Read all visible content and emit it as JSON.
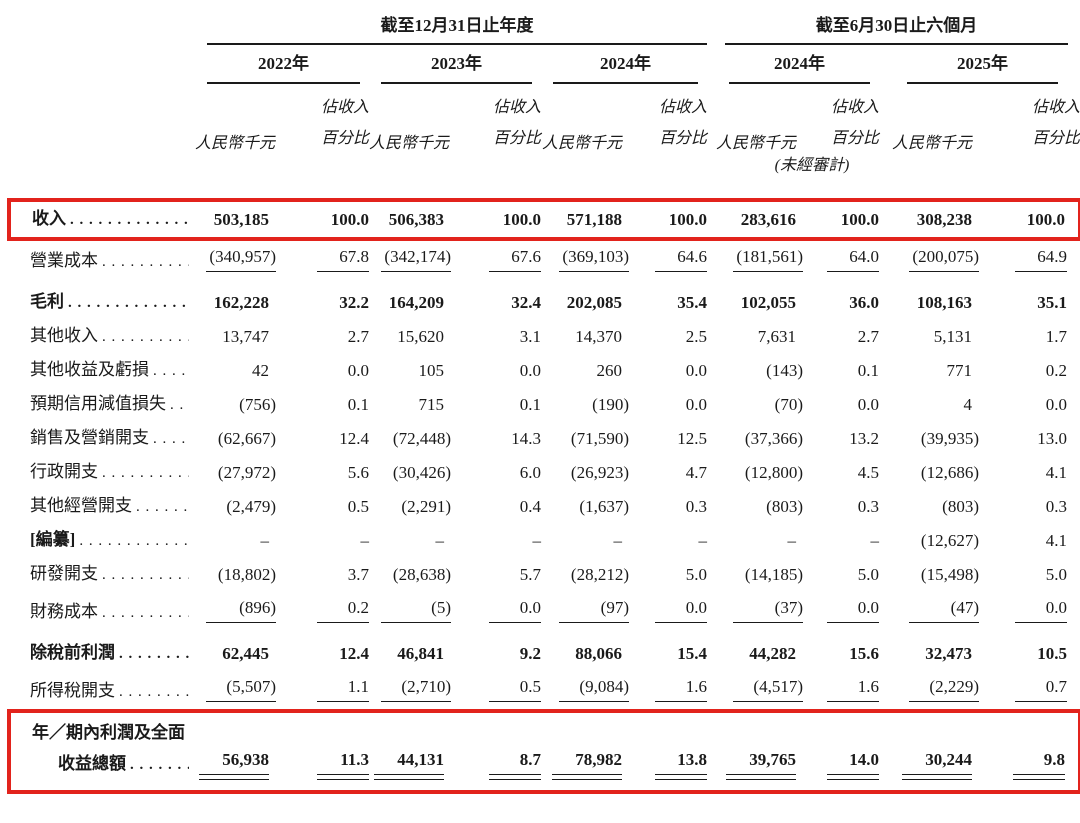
{
  "colors": {
    "highlight_box_red": "#e2231c",
    "rule": "#1a1a1a",
    "text": "#1a1a1a",
    "background": "#ffffff"
  },
  "table": {
    "group1": {
      "title": "截至12月31日止年度",
      "years": [
        "2022年",
        "2023年",
        "2024年"
      ]
    },
    "group2": {
      "title": "截至6月30日止六個月",
      "years": [
        "2024年",
        "2025年"
      ]
    },
    "col_unit": "人民幣千元",
    "col_pct_line1": "佔收入",
    "col_pct_line2": "百分比",
    "unaudited": "(未經審計)",
    "rows": [
      {
        "name": "row-revenue",
        "label": "收入",
        "bold": true,
        "box": true,
        "cells": [
          "503,185",
          "100.0",
          "506,383",
          "100.0",
          "571,188",
          "100.0",
          "283,616",
          "100.0",
          "308,238",
          "100.0"
        ]
      },
      {
        "name": "row-cost-of-sales",
        "label": "營業成本",
        "underline": true,
        "cells": [
          "(340,957)",
          "67.8",
          "(342,174)",
          "67.6",
          "(369,103)",
          "64.6",
          "(181,561)",
          "64.0",
          "(200,075)",
          "64.9"
        ]
      },
      {
        "name": "row-gross-profit",
        "label": "毛利",
        "bold": true,
        "gap_top": true,
        "cells": [
          "162,228",
          "32.2",
          "164,209",
          "32.4",
          "202,085",
          "35.4",
          "102,055",
          "36.0",
          "108,163",
          "35.1"
        ]
      },
      {
        "name": "row-other-income",
        "label": "其他收入",
        "cells": [
          "13,747",
          "2.7",
          "15,620",
          "3.1",
          "14,370",
          "2.5",
          "7,631",
          "2.7",
          "5,131",
          "1.7"
        ]
      },
      {
        "name": "row-other-gains-losses",
        "label": "其他收益及虧損",
        "cells": [
          "42",
          "0.0",
          "105",
          "0.0",
          "260",
          "0.0",
          "(143)",
          "0.1",
          "771",
          "0.2"
        ]
      },
      {
        "name": "row-expected-credit-loss",
        "label": "預期信用減值損失",
        "cells": [
          "(756)",
          "0.1",
          "715",
          "0.1",
          "(190)",
          "0.0",
          "(70)",
          "0.0",
          "4",
          "0.0"
        ]
      },
      {
        "name": "row-selling-marketing",
        "label": "銷售及營銷開支",
        "cells": [
          "(62,667)",
          "12.4",
          "(72,448)",
          "14.3",
          "(71,590)",
          "12.5",
          "(37,366)",
          "13.2",
          "(39,935)",
          "13.0"
        ]
      },
      {
        "name": "row-admin-expenses",
        "label": "行政開支",
        "cells": [
          "(27,972)",
          "5.6",
          "(30,426)",
          "6.0",
          "(26,923)",
          "4.7",
          "(12,800)",
          "4.5",
          "(12,686)",
          "4.1"
        ]
      },
      {
        "name": "row-other-operating",
        "label": "其他經營開支",
        "cells": [
          "(2,479)",
          "0.5",
          "(2,291)",
          "0.4",
          "(1,637)",
          "0.3",
          "(803)",
          "0.3",
          "(803)",
          "0.3"
        ]
      },
      {
        "name": "row-redacted",
        "label": "[編纂]",
        "label_bold": true,
        "cells": [
          "–",
          "–",
          "–",
          "–",
          "–",
          "–",
          "–",
          "–",
          "(12,627)",
          "4.1"
        ]
      },
      {
        "name": "row-rd-expenses",
        "label": "研發開支",
        "cells": [
          "(18,802)",
          "3.7",
          "(28,638)",
          "5.7",
          "(28,212)",
          "5.0",
          "(14,185)",
          "5.0",
          "(15,498)",
          "5.0"
        ]
      },
      {
        "name": "row-finance-costs",
        "label": "財務成本",
        "underline": true,
        "cells": [
          "(896)",
          "0.2",
          "(5)",
          "0.0",
          "(97)",
          "0.0",
          "(37)",
          "0.0",
          "(47)",
          "0.0"
        ]
      },
      {
        "name": "row-profit-before-tax",
        "label": "除稅前利潤",
        "bold": true,
        "gap_top": true,
        "cells": [
          "62,445",
          "12.4",
          "46,841",
          "9.2",
          "88,066",
          "15.4",
          "44,282",
          "15.6",
          "32,473",
          "10.5"
        ]
      },
      {
        "name": "row-income-tax",
        "label": "所得稅開支",
        "underline": true,
        "cells": [
          "(5,507)",
          "1.1",
          "(2,710)",
          "0.5",
          "(9,084)",
          "1.6",
          "(4,517)",
          "1.6",
          "(2,229)",
          "0.7"
        ]
      },
      {
        "name": "row-total-profit",
        "label_line1": "年／期內利潤及全面",
        "label_line2": "收益總額",
        "bold": true,
        "box": true,
        "double_underline": true,
        "cells": [
          "56,938",
          "11.3",
          "44,131",
          "8.7",
          "78,982",
          "13.8",
          "39,765",
          "14.0",
          "30,244",
          "9.8"
        ]
      }
    ]
  }
}
